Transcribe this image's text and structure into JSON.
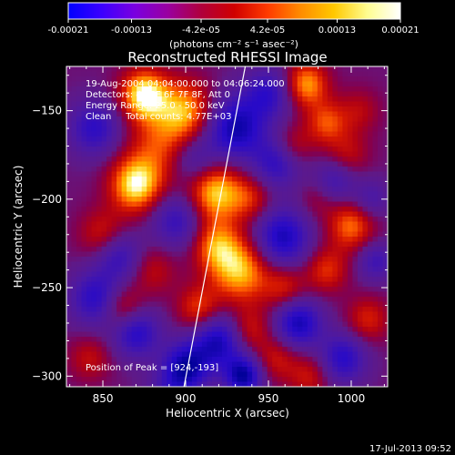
{
  "colorbar": {
    "tick_labels": [
      "-0.00021",
      "-0.00013",
      "-4.2e-05",
      "4.2e-05",
      "0.00013",
      "0.00021"
    ],
    "tick_values": [
      -0.00021,
      -0.00013,
      -4.2e-05,
      4.2e-05,
      0.00013,
      0.00021
    ],
    "range": [
      -0.00021,
      0.00021
    ],
    "unit_label": "(photons cm⁻² s⁻¹ asec⁻²)",
    "colors": [
      "#0000ff",
      "#3b00ff",
      "#7a00e0",
      "#9a00a0",
      "#b0003c",
      "#d00000",
      "#ff3a00",
      "#ff8c00",
      "#ffc800",
      "#fffd90",
      "#ffffff"
    ]
  },
  "chart_data": {
    "type": "heatmap",
    "title": "Reconstructed RHESSI Image",
    "xlabel": "Heliocentric X (arcsec)",
    "ylabel": "Heliocentric Y (arcsec)",
    "xlim": [
      828,
      1022
    ],
    "ylim": [
      -306,
      -125
    ],
    "xticks": [
      850,
      900,
      950,
      1000
    ],
    "xtick_labels": [
      "850",
      "900",
      "950",
      "1000"
    ],
    "yticks": [
      -150,
      -200,
      -250,
      -300
    ],
    "ytick_labels": [
      "−150",
      "−200",
      "−250",
      "−300"
    ],
    "annotations": [
      "19-Aug-2004 04:04:00.000 to 04:06:24.000",
      "Detectors: 4F 5F 6F 7F 8F, Att 0",
      "Energy Range: 25.0 - 50.0 keV",
      "Clean     Total counts: 4.77E+03"
    ],
    "peak_label": "Position of Peak = [924,-193]",
    "peak": [
      924,
      -193
    ],
    "limb_line": [
      [
        899,
        -306
      ],
      [
        936,
        -125
      ]
    ],
    "blobs": [
      [
        875,
        -141,
        1.0,
        10
      ],
      [
        870,
        -192,
        0.95,
        11
      ],
      [
        918,
        -196,
        0.9,
        12
      ],
      [
        933,
        -240,
        0.85,
        13
      ],
      [
        918,
        -226,
        0.6,
        10
      ],
      [
        900,
        -150,
        0.75,
        12
      ],
      [
        885,
        -170,
        0.5,
        14
      ],
      [
        850,
        -220,
        0.45,
        10
      ],
      [
        862,
        -262,
        0.55,
        9
      ],
      [
        908,
        -262,
        0.55,
        9
      ],
      [
        880,
        -240,
        0.35,
        10
      ],
      [
        940,
        -200,
        0.4,
        9
      ],
      [
        938,
        -274,
        0.45,
        9
      ],
      [
        973,
        -135,
        0.75,
        9
      ],
      [
        985,
        -157,
        0.55,
        9
      ],
      [
        965,
        -170,
        0.35,
        8
      ],
      [
        1005,
        -150,
        0.3,
        9
      ],
      [
        998,
        -175,
        0.35,
        9
      ],
      [
        1000,
        -215,
        0.65,
        10
      ],
      [
        985,
        -240,
        0.5,
        9
      ],
      [
        960,
        -250,
        0.45,
        9
      ],
      [
        1010,
        -268,
        0.45,
        9
      ],
      [
        955,
        -290,
        0.4,
        9
      ],
      [
        975,
        -300,
        0.4,
        9
      ],
      [
        842,
        -290,
        0.35,
        9
      ],
      [
        980,
        -200,
        0.25,
        8
      ],
      [
        930,
        -160,
        -0.9,
        13
      ],
      [
        950,
        -140,
        -0.6,
        10
      ],
      [
        845,
        -160,
        -0.65,
        11
      ],
      [
        846,
        -256,
        -0.7,
        11
      ],
      [
        860,
        -232,
        -0.6,
        10
      ],
      [
        905,
        -178,
        -0.5,
        10
      ],
      [
        895,
        -212,
        -0.6,
        11
      ],
      [
        870,
        -275,
        -0.75,
        10
      ],
      [
        900,
        -295,
        -0.9,
        10
      ],
      [
        920,
        -280,
        -0.85,
        11
      ],
      [
        935,
        -300,
        -0.95,
        8
      ],
      [
        958,
        -222,
        -0.85,
        12
      ],
      [
        968,
        -270,
        -0.85,
        10
      ],
      [
        990,
        -190,
        -0.5,
        9
      ],
      [
        1012,
        -200,
        -0.4,
        8
      ],
      [
        995,
        -290,
        -0.7,
        10
      ],
      [
        1015,
        -235,
        -0.5,
        8
      ],
      [
        955,
        -180,
        -0.6,
        10
      ],
      [
        890,
        -312,
        -0.4,
        10
      ]
    ],
    "grid": false
  },
  "footer": {
    "timestamp": "17-Jul-2013 09:52"
  }
}
